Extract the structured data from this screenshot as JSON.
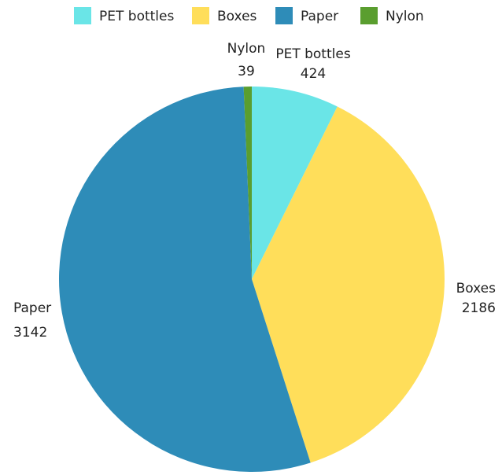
{
  "chart_data": {
    "type": "pie",
    "title": "",
    "categories": [
      "PET bottles",
      "Boxes",
      "Paper",
      "Nylon"
    ],
    "values": [
      424,
      2186,
      3142,
      39
    ],
    "colors": [
      "#6ae5e7",
      "#ffde5a",
      "#2e8cb8",
      "#5a9e2f"
    ],
    "start_angle_deg": 0,
    "direction": "clockwise",
    "legend": {
      "position": "top",
      "items": [
        "PET bottles",
        "Boxes",
        "Paper",
        "Nylon"
      ]
    },
    "data_labels": [
      {
        "name": "PET bottles",
        "value": "424"
      },
      {
        "name": "Boxes",
        "value": "2186"
      },
      {
        "name": "Paper",
        "value": "3142"
      },
      {
        "name": "Nylon",
        "value": "39"
      }
    ]
  }
}
